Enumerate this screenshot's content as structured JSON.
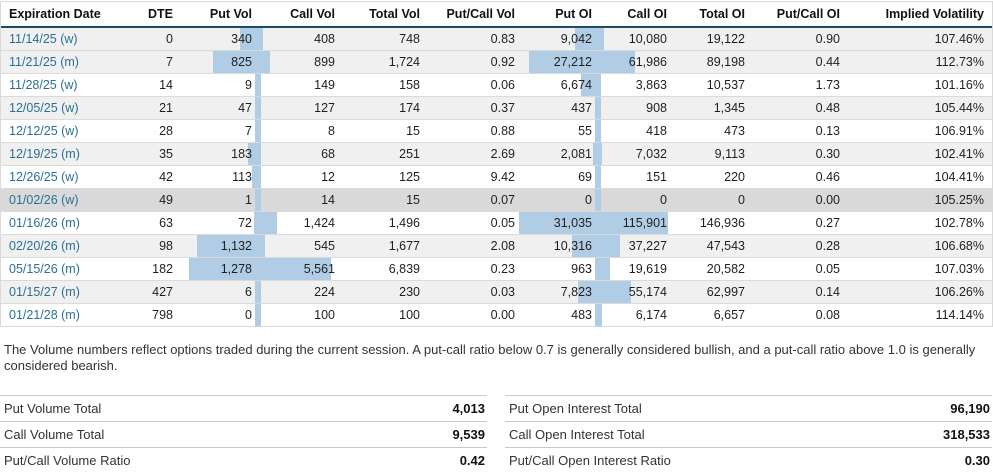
{
  "table": {
    "columns": [
      {
        "key": "date",
        "label": "Expiration Date"
      },
      {
        "key": "dte",
        "label": "DTE"
      },
      {
        "key": "put_vol",
        "label": "Put Vol"
      },
      {
        "key": "call_vol",
        "label": "Call Vol"
      },
      {
        "key": "total_vol",
        "label": "Total Vol"
      },
      {
        "key": "pc_vol",
        "label": "Put/Call Vol"
      },
      {
        "key": "put_oi",
        "label": "Put OI"
      },
      {
        "key": "call_oi",
        "label": "Call OI"
      },
      {
        "key": "total_oi",
        "label": "Total OI"
      },
      {
        "key": "pc_oi",
        "label": "Put/Call OI"
      },
      {
        "key": "iv",
        "label": "Implied Volatility"
      }
    ],
    "rows": [
      {
        "date": "11/14/25 (w)",
        "dte": "0",
        "put_vol": "340",
        "call_vol": "408",
        "total_vol": "748",
        "pc_vol": "0.83",
        "put_oi": "9,042",
        "call_oi": "10,080",
        "total_oi": "19,122",
        "pc_oi": "0.90",
        "iv": "107.46%",
        "shade": "gray"
      },
      {
        "date": "11/21/25 (m)",
        "dte": "7",
        "put_vol": "825",
        "call_vol": "899",
        "total_vol": "1,724",
        "pc_vol": "0.92",
        "put_oi": "27,212",
        "call_oi": "61,986",
        "total_oi": "89,198",
        "pc_oi": "0.44",
        "iv": "112.73%",
        "shade": "gray"
      },
      {
        "date": "11/28/25 (w)",
        "dte": "14",
        "put_vol": "9",
        "call_vol": "149",
        "total_vol": "158",
        "pc_vol": "0.06",
        "put_oi": "6,674",
        "call_oi": "3,863",
        "total_oi": "10,537",
        "pc_oi": "1.73",
        "iv": "101.16%",
        "shade": "white"
      },
      {
        "date": "12/05/25 (w)",
        "dte": "21",
        "put_vol": "47",
        "call_vol": "127",
        "total_vol": "174",
        "pc_vol": "0.37",
        "put_oi": "437",
        "call_oi": "908",
        "total_oi": "1,345",
        "pc_oi": "0.48",
        "iv": "105.44%",
        "shade": "gray"
      },
      {
        "date": "12/12/25 (w)",
        "dte": "28",
        "put_vol": "7",
        "call_vol": "8",
        "total_vol": "15",
        "pc_vol": "0.88",
        "put_oi": "55",
        "call_oi": "418",
        "total_oi": "473",
        "pc_oi": "0.13",
        "iv": "106.91%",
        "shade": "white"
      },
      {
        "date": "12/19/25 (m)",
        "dte": "35",
        "put_vol": "183",
        "call_vol": "68",
        "total_vol": "251",
        "pc_vol": "2.69",
        "put_oi": "2,081",
        "call_oi": "7,032",
        "total_oi": "9,113",
        "pc_oi": "0.30",
        "iv": "102.41%",
        "shade": "gray"
      },
      {
        "date": "12/26/25 (w)",
        "dte": "42",
        "put_vol": "113",
        "call_vol": "12",
        "total_vol": "125",
        "pc_vol": "9.42",
        "put_oi": "69",
        "call_oi": "151",
        "total_oi": "220",
        "pc_oi": "0.46",
        "iv": "104.41%",
        "shade": "white"
      },
      {
        "date": "01/02/26 (w)",
        "dte": "49",
        "put_vol": "1",
        "call_vol": "14",
        "total_vol": "15",
        "pc_vol": "0.07",
        "put_oi": "0",
        "call_oi": "0",
        "total_oi": "0",
        "pc_oi": "0.00",
        "iv": "105.25%",
        "shade": "selected"
      },
      {
        "date": "01/16/26 (m)",
        "dte": "63",
        "put_vol": "72",
        "call_vol": "1,424",
        "total_vol": "1,496",
        "pc_vol": "0.05",
        "put_oi": "31,035",
        "call_oi": "115,901",
        "total_oi": "146,936",
        "pc_oi": "0.27",
        "iv": "102.78%",
        "shade": "white"
      },
      {
        "date": "02/20/26 (m)",
        "dte": "98",
        "put_vol": "1,132",
        "call_vol": "545",
        "total_vol": "1,677",
        "pc_vol": "2.08",
        "put_oi": "10,316",
        "call_oi": "37,227",
        "total_oi": "47,543",
        "pc_oi": "0.28",
        "iv": "106.68%",
        "shade": "gray"
      },
      {
        "date": "05/15/26 (m)",
        "dte": "182",
        "put_vol": "1,278",
        "call_vol": "5,561",
        "total_vol": "6,839",
        "pc_vol": "0.23",
        "put_oi": "963",
        "call_oi": "19,619",
        "total_oi": "20,582",
        "pc_oi": "0.05",
        "iv": "107.03%",
        "shade": "white"
      },
      {
        "date": "01/15/27 (m)",
        "dte": "427",
        "put_vol": "6",
        "call_vol": "224",
        "total_vol": "230",
        "pc_vol": "0.03",
        "put_oi": "7,823",
        "call_oi": "55,174",
        "total_oi": "62,997",
        "pc_oi": "0.14",
        "iv": "106.26%",
        "shade": "gray"
      },
      {
        "date": "01/21/28 (m)",
        "dte": "798",
        "put_vol": "0",
        "call_vol": "100",
        "total_vol": "100",
        "pc_vol": "0.00",
        "put_oi": "483",
        "call_oi": "6,174",
        "total_oi": "6,657",
        "pc_oi": "0.08",
        "iv": "114.14%",
        "shade": "white"
      }
    ]
  },
  "note": "The Volume numbers reflect options traded during the current session. A put-call ratio below 0.7 is generally considered bullish, and a put-call ratio above 1.0 is generally considered bearish.",
  "summaries": {
    "left": [
      {
        "label": "Put Volume Total",
        "value": "4,013"
      },
      {
        "label": "Call Volume Total",
        "value": "9,539"
      },
      {
        "label": "Put/Call Volume Ratio",
        "value": "0.42"
      }
    ],
    "right": [
      {
        "label": "Put Open Interest Total",
        "value": "96,190"
      },
      {
        "label": "Call Open Interest Total",
        "value": "318,533"
      },
      {
        "label": "Put/Call Open Interest Ratio",
        "value": "0.30"
      }
    ]
  },
  "colors": {
    "bar": "#b1cde5",
    "link": "#2a7094",
    "header_border": "#1d4b63",
    "stripe": "#f0f0f0",
    "selected_row": "#d9d9d9"
  }
}
